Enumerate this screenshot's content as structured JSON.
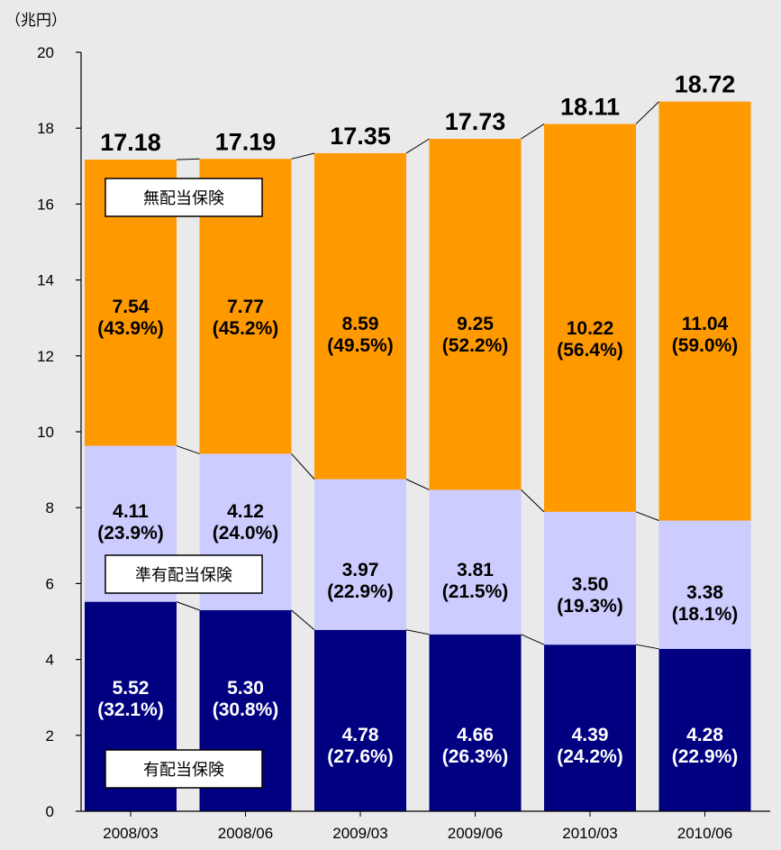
{
  "chart_data": {
    "type": "bar",
    "stacked": true,
    "unit_label": "（兆円）",
    "categories": [
      "2008/03",
      "2008/06",
      "2009/03",
      "2009/06",
      "2010/03",
      "2010/06"
    ],
    "ylim": [
      0,
      20
    ],
    "yticks": [
      "0",
      "2",
      "4",
      "6",
      "8",
      "10",
      "12",
      "14",
      "16",
      "18",
      "20"
    ],
    "grid": false,
    "totals": [
      "17.18",
      "17.19",
      "17.35",
      "17.73",
      "18.11",
      "18.72"
    ],
    "series": [
      {
        "name": "有配当保険",
        "color": "#000080",
        "label_color": "#ffffff",
        "values": [
          5.52,
          5.3,
          4.78,
          4.66,
          4.39,
          4.28
        ],
        "value_labels": [
          "5.52",
          "5.30",
          "4.78",
          "4.66",
          "4.39",
          "4.28"
        ],
        "pct_labels": [
          "(32.1%)",
          "(30.8%)",
          "(27.6%)",
          "(26.3%)",
          "(24.2%)",
          "(22.9%)"
        ]
      },
      {
        "name": "準有配当保険",
        "color": "#ccccff",
        "label_color": "#000000",
        "values": [
          4.11,
          4.12,
          3.97,
          3.81,
          3.5,
          3.38
        ],
        "value_labels": [
          "4.11",
          "4.12",
          "3.97",
          "3.81",
          "3.50",
          "3.38"
        ],
        "pct_labels": [
          "(23.9%)",
          "(24.0%)",
          "(22.9%)",
          "(21.5%)",
          "(19.3%)",
          "(18.1%)"
        ]
      },
      {
        "name": "無配当保険",
        "color": "#ff9900",
        "label_color": "#000000",
        "values": [
          7.54,
          7.77,
          8.59,
          9.25,
          10.22,
          11.04
        ],
        "value_labels": [
          "7.54",
          "7.77",
          "8.59",
          "9.25",
          "10.22",
          "11.04"
        ],
        "pct_labels": [
          "(43.9%)",
          "(45.2%)",
          "(49.5%)",
          "(52.2%)",
          "(56.4%)",
          "(59.0%)"
        ]
      }
    ]
  }
}
